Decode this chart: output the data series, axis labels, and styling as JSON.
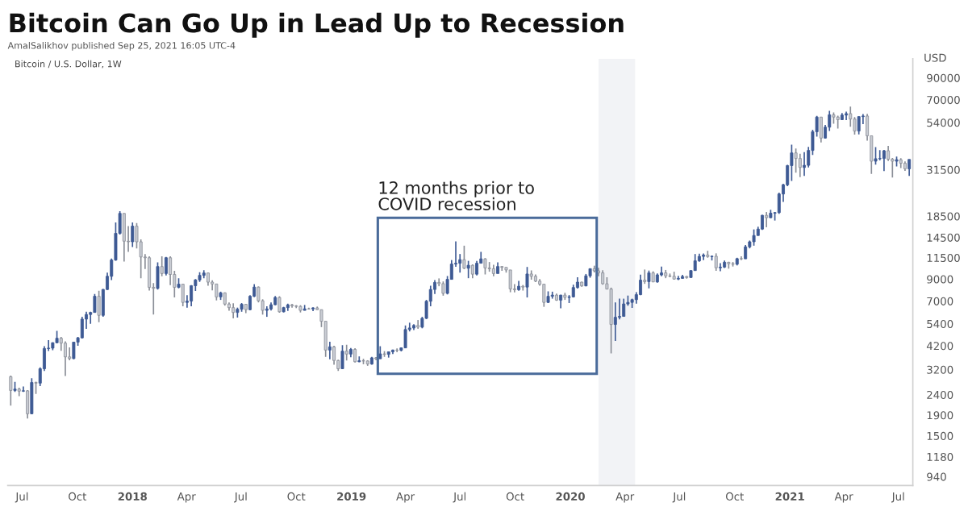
{
  "chart_data": {
    "type": "candlestick",
    "title": "Bitcoin Can Go Up in Lead Up to Recession",
    "subtitle": "AmalSalikhov published Sep 25, 2021 16:05 UTC-4",
    "annotations": [
      "Bitcoin / U.S. Dollar, 1W",
      "12 months prior to\nCOVID recession"
    ],
    "ylabel": "USD",
    "colors": [
      "#c9ccd3",
      "#3e5a94",
      "#c9ccd3",
      "#3e5a94",
      "#c9ccd3",
      "#3e5a94",
      "#c9ccd3",
      "#3e5a94",
      "#3e5a94",
      "#3e5a94",
      "#3e5a94",
      "#3e5a94",
      "#c9ccd3",
      "#c9ccd3",
      "#c9ccd3",
      "#3e5a94",
      "#3e5a94",
      "#3e5a94",
      "#3e5a94",
      "#3e5a94",
      "#3e5a94",
      "#c9ccd3",
      "#3e5a94",
      "#3e5a94",
      "#3e5a94",
      "#3e5a94",
      "#3e5a94",
      "#c9ccd3",
      "#c9ccd3",
      "#3e5a94",
      "#c9ccd3",
      "#c9ccd3",
      "#c9ccd3",
      "#c9ccd3",
      "#c9ccd3",
      "#3e5a94",
      "#c9ccd3",
      "#3e5a94",
      "#c9ccd3",
      "#c9ccd3",
      "#3e5a94",
      "#c9ccd3",
      "#3e5a94",
      "#3e5a94",
      "#3e5a94",
      "#3e5a94",
      "#3e5a94",
      "#c9ccd3",
      "#c9ccd3",
      "#c9ccd3",
      "#3e5a94",
      "#c9ccd3",
      "#c9ccd3",
      "#c9ccd3",
      "#3e5a94",
      "#3e5a94",
      "#c9ccd3",
      "#3e5a94",
      "#3e5a94",
      "#c9ccd3",
      "#c9ccd3",
      "#3e5a94",
      "#3e5a94",
      "#3e5a94",
      "#c9ccd3",
      "#3e5a94",
      "#3e5a94",
      "#c9ccd3",
      "#c9ccd3",
      "#c9ccd3",
      "#3e5a94",
      "#c9ccd3",
      "#3e5a94",
      "#c9ccd3",
      "#c9ccd3",
      "#c9ccd3",
      "#3e5a94",
      "#c9ccd3",
      "#c9ccd3",
      "#3e5a94",
      "#c9ccd3",
      "#3e5a94",
      "#c9ccd3",
      "#3e5a94",
      "#c9ccd3",
      "#c9ccd3",
      "#3e5a94",
      "#c9ccd3",
      "#3e5a94",
      "#c9ccd3",
      "#3e5a94",
      "#3e5a94",
      "#c9ccd3",
      "#3e5a94",
      "#3e5a94",
      "#3e5a94",
      "#3e5a94",
      "#c9ccd3",
      "#3e5a94",
      "#3e5a94",
      "#3e5a94",
      "#3e5a94",
      "#c9ccd3",
      "#c9ccd3",
      "#3e5a94",
      "#3e5a94",
      "#3e5a94",
      "#3e5a94",
      "#c9ccd3",
      "#3e5a94",
      "#c9ccd3",
      "#3e5a94",
      "#3e5a94",
      "#c9ccd3",
      "#c9ccd3",
      "#c9ccd3",
      "#3e5a94",
      "#c9ccd3",
      "#c9ccd3",
      "#c9ccd3",
      "#c9ccd3",
      "#3e5a94",
      "#c9ccd3",
      "#3e5a94",
      "#c9ccd3",
      "#c9ccd3",
      "#c9ccd3",
      "#c9ccd3",
      "#3e5a94",
      "#3e5a94",
      "#c9ccd3",
      "#3e5a94",
      "#c9ccd3",
      "#3e5a94",
      "#3e5a94",
      "#3e5a94",
      "#c9ccd3",
      "#3e5a94",
      "#3e5a94",
      "#c9ccd3",
      "#c9ccd3",
      "#c9ccd3",
      "#c9ccd3",
      "#c9ccd3",
      "#3e5a94",
      "#3e5a94",
      "#3e5a94",
      "#3e5a94",
      "#3e5a94",
      "#3e5a94",
      "#3e5a94",
      "#c9ccd3",
      "#3e5a94",
      "#c9ccd3",
      "#3e5a94",
      "#3e5a94",
      "#c9ccd3",
      "#c9ccd3",
      "#c9ccd3",
      "#3e5a94",
      "#3e5a94",
      "#c9ccd3",
      "#3e5a94",
      "#3e5a94",
      "#3e5a94",
      "#3e5a94",
      "#c9ccd3",
      "#3e5a94",
      "#c9ccd3",
      "#3e5a94",
      "#3e5a94",
      "#c9ccd3",
      "#c9ccd3",
      "#3e5a94",
      "#c9ccd3",
      "#3e5a94",
      "#3e5a94",
      "#3e5a94",
      "#3e5a94",
      "#3e5a94",
      "#c9ccd3",
      "#3e5a94",
      "#3e5a94",
      "#3e5a94",
      "#3e5a94",
      "#3e5a94",
      "#3e5a94",
      "#c9ccd3",
      "#c9ccd3",
      "#3e5a94",
      "#3e5a94",
      "#3e5a94",
      "#3e5a94",
      "#c9ccd3",
      "#3e5a94",
      "#3e5a94",
      "#c9ccd3",
      "#c9ccd3",
      "#3e5a94",
      "#3e5a94",
      "#c9ccd3",
      "#c9ccd3",
      "#3e5a94",
      "#3e5a94",
      "#c9ccd3",
      "#c9ccd3",
      "#3e5a94",
      "#3e5a94",
      "#3e5a94",
      "#c9ccd3",
      "#c9ccd3",
      "#3e5a94",
      "#c9ccd3",
      "#c9ccd3",
      "#3e5a94"
    ],
    "log": true,
    "ylim": [
      850,
      112000
    ],
    "yticks": [
      940,
      1180,
      1500,
      1900,
      2400,
      3200,
      4200,
      5400,
      7000,
      9000,
      11500,
      14500,
      18500,
      31500,
      54000,
      70000,
      90000
    ],
    "xlim": [
      "2017-06-07",
      "2021-07-25"
    ],
    "xticks": [
      {
        "value": "2017-07-01",
        "label": "Jul"
      },
      {
        "value": "2017-10-01",
        "label": "Oct"
      },
      {
        "value": "2018-01-01",
        "label": "2018"
      },
      {
        "value": "2018-04-01",
        "label": "Apr"
      },
      {
        "value": "2018-07-01",
        "label": "Jul"
      },
      {
        "value": "2018-10-01",
        "label": "Oct"
      },
      {
        "value": "2019-01-01",
        "label": "2019"
      },
      {
        "value": "2019-04-01",
        "label": "Apr"
      },
      {
        "value": "2019-07-01",
        "label": "Jul"
      },
      {
        "value": "2019-10-01",
        "label": "Oct"
      },
      {
        "value": "2020-01-01",
        "label": "2020"
      },
      {
        "value": "2020-04-01",
        "label": "Apr"
      },
      {
        "value": "2020-07-01",
        "label": "Jul"
      },
      {
        "value": "2020-10-01",
        "label": "Oct"
      },
      {
        "value": "2021-01-01",
        "label": "2021"
      },
      {
        "value": "2021-04-01",
        "label": "Apr"
      },
      {
        "value": "2021-07-01",
        "label": "Jul"
      }
    ],
    "grid": false,
    "bands": [
      {
        "axis": "x",
        "from": "2020-02-17",
        "to": "2020-04-18",
        "color": "#f2f3f6"
      }
    ],
    "x": [
      "2017-06-12",
      "2017-06-19",
      "2017-06-26",
      "2017-07-03",
      "2017-07-10",
      "2017-07-17",
      "2017-07-24",
      "2017-07-31",
      "2017-08-07",
      "2017-08-14",
      "2017-08-21",
      "2017-08-28",
      "2017-09-04",
      "2017-09-11",
      "2017-09-18",
      "2017-09-25",
      "2017-10-02",
      "2017-10-09",
      "2017-10-16",
      "2017-10-23",
      "2017-10-30",
      "2017-11-06",
      "2017-11-13",
      "2017-11-20",
      "2017-11-27",
      "2017-12-04",
      "2017-12-11",
      "2017-12-18",
      "2017-12-25",
      "2018-01-01",
      "2018-01-08",
      "2018-01-15",
      "2018-01-22",
      "2018-01-29",
      "2018-02-05",
      "2018-02-12",
      "2018-02-19",
      "2018-02-26",
      "2018-03-05",
      "2018-03-12",
      "2018-03-19",
      "2018-03-26",
      "2018-04-02",
      "2018-04-09",
      "2018-04-16",
      "2018-04-23",
      "2018-04-30",
      "2018-05-07",
      "2018-05-14",
      "2018-05-21",
      "2018-05-28",
      "2018-06-04",
      "2018-06-11",
      "2018-06-18",
      "2018-06-25",
      "2018-07-02",
      "2018-07-09",
      "2018-07-16",
      "2018-07-23",
      "2018-07-30",
      "2018-08-06",
      "2018-08-13",
      "2018-08-20",
      "2018-08-27",
      "2018-09-03",
      "2018-09-10",
      "2018-09-17",
      "2018-09-24",
      "2018-10-01",
      "2018-10-08",
      "2018-10-15",
      "2018-10-22",
      "2018-10-29",
      "2018-11-05",
      "2018-11-12",
      "2018-11-19",
      "2018-11-26",
      "2018-12-03",
      "2018-12-10",
      "2018-12-17",
      "2018-12-24",
      "2018-12-31",
      "2019-01-07",
      "2019-01-14",
      "2019-01-21",
      "2019-01-28",
      "2019-02-04",
      "2019-02-11",
      "2019-02-18",
      "2019-02-25",
      "2019-03-04",
      "2019-03-11",
      "2019-03-18",
      "2019-03-25",
      "2019-04-01",
      "2019-04-08",
      "2019-04-15",
      "2019-04-22",
      "2019-04-29",
      "2019-05-06",
      "2019-05-13",
      "2019-05-20",
      "2019-05-27",
      "2019-06-03",
      "2019-06-10",
      "2019-06-17",
      "2019-06-24",
      "2019-07-01",
      "2019-07-08",
      "2019-07-15",
      "2019-07-22",
      "2019-07-29",
      "2019-08-05",
      "2019-08-12",
      "2019-08-19",
      "2019-08-26",
      "2019-09-02",
      "2019-09-09",
      "2019-09-16",
      "2019-09-23",
      "2019-09-30",
      "2019-10-07",
      "2019-10-14",
      "2019-10-21",
      "2019-10-28",
      "2019-11-04",
      "2019-11-11",
      "2019-11-18",
      "2019-11-25",
      "2019-12-02",
      "2019-12-09",
      "2019-12-16",
      "2019-12-23",
      "2019-12-30",
      "2020-01-06",
      "2020-01-13",
      "2020-01-20",
      "2020-01-27",
      "2020-02-03",
      "2020-02-10",
      "2020-02-17",
      "2020-02-24",
      "2020-03-02",
      "2020-03-09",
      "2020-03-16",
      "2020-03-23",
      "2020-03-30",
      "2020-04-06",
      "2020-04-13",
      "2020-04-20",
      "2020-04-27",
      "2020-05-04",
      "2020-05-11",
      "2020-05-18",
      "2020-05-25",
      "2020-06-01",
      "2020-06-08",
      "2020-06-15",
      "2020-06-22",
      "2020-06-29",
      "2020-07-06",
      "2020-07-13",
      "2020-07-20",
      "2020-07-27",
      "2020-08-03",
      "2020-08-10",
      "2020-08-17",
      "2020-08-24",
      "2020-08-31",
      "2020-09-07",
      "2020-09-14",
      "2020-09-21",
      "2020-09-28",
      "2020-10-05",
      "2020-10-12",
      "2020-10-19",
      "2020-10-26",
      "2020-11-02",
      "2020-11-09",
      "2020-11-16",
      "2020-11-23",
      "2020-11-30",
      "2020-12-07",
      "2020-12-14",
      "2020-12-21",
      "2020-12-28",
      "2021-01-04",
      "2021-01-11",
      "2021-01-18",
      "2021-01-25",
      "2021-02-01",
      "2021-02-08",
      "2021-02-15",
      "2021-02-22",
      "2021-03-01",
      "2021-03-08",
      "2021-03-15",
      "2021-03-22",
      "2021-03-29",
      "2021-04-05",
      "2021-04-12",
      "2021-04-19",
      "2021-04-26",
      "2021-05-03",
      "2021-05-10",
      "2021-05-17",
      "2021-05-24",
      "2021-05-31",
      "2021-06-07",
      "2021-06-14",
      "2021-06-21",
      "2021-06-28",
      "2021-07-05",
      "2021-07-12",
      "2021-07-19"
    ],
    "ohlc": [
      [
        2950,
        2990,
        2120,
        2520
      ],
      [
        2520,
        2780,
        2480,
        2560
      ],
      [
        2560,
        2600,
        2360,
        2500
      ],
      [
        2500,
        2640,
        2480,
        2510
      ],
      [
        2510,
        2530,
        1830,
        1930
      ],
      [
        1930,
        2900,
        1920,
        2760
      ],
      [
        2760,
        2790,
        2420,
        2740
      ],
      [
        2740,
        3280,
        2650,
        3230
      ],
      [
        3230,
        4180,
        3150,
        4070
      ],
      [
        4070,
        4480,
        3960,
        4090
      ],
      [
        4090,
        4370,
        3990,
        4350
      ],
      [
        4350,
        4980,
        4330,
        4580
      ],
      [
        4580,
        4650,
        3970,
        4330
      ],
      [
        4330,
        4420,
        2970,
        3700
      ],
      [
        3700,
        4120,
        3560,
        3630
      ],
      [
        3630,
        4380,
        3600,
        4380
      ],
      [
        4380,
        4650,
        4200,
        4600
      ],
      [
        4600,
        5850,
        4560,
        5700
      ],
      [
        5700,
        6200,
        5100,
        6010
      ],
      [
        6010,
        6200,
        5400,
        6150
      ],
      [
        6150,
        7600,
        6150,
        7400
      ],
      [
        7400,
        7890,
        5500,
        5950
      ],
      [
        5950,
        8050,
        5860,
        8000
      ],
      [
        8000,
        9700,
        7950,
        9300
      ],
      [
        9300,
        11400,
        8900,
        11200
      ],
      [
        11200,
        17200,
        11100,
        15200
      ],
      [
        15200,
        19600,
        15000,
        19100
      ],
      [
        19100,
        19100,
        11000,
        13900
      ],
      [
        13900,
        16500,
        12300,
        13800
      ],
      [
        13800,
        17200,
        13000,
        16500
      ],
      [
        16500,
        17100,
        12800,
        13800
      ],
      [
        13800,
        14200,
        9100,
        11600
      ],
      [
        11600,
        12000,
        10100,
        11500
      ],
      [
        11500,
        11700,
        7900,
        8200
      ],
      [
        8200,
        8600,
        6000,
        8100
      ],
      [
        8100,
        10900,
        8000,
        10400
      ],
      [
        10400,
        11700,
        9300,
        9600
      ],
      [
        9600,
        11600,
        9400,
        11500
      ],
      [
        11500,
        11700,
        8400,
        9500
      ],
      [
        9500,
        9900,
        7300,
        8200
      ],
      [
        8200,
        9100,
        8100,
        8500
      ],
      [
        8500,
        8500,
        6600,
        6900
      ],
      [
        6900,
        7500,
        6500,
        7000
      ],
      [
        7000,
        8400,
        6600,
        8350
      ],
      [
        8350,
        9000,
        7860,
        8920
      ],
      [
        8920,
        9750,
        8720,
        9400
      ],
      [
        9400,
        9960,
        9100,
        9660
      ],
      [
        9660,
        9700,
        8350,
        8700
      ],
      [
        8700,
        8880,
        7920,
        8520
      ],
      [
        8520,
        8530,
        7060,
        7350
      ],
      [
        7350,
        7800,
        7100,
        7700
      ],
      [
        7700,
        7730,
        6650,
        6770
      ],
      [
        6770,
        6900,
        6280,
        6500
      ],
      [
        6500,
        6830,
        5750,
        6150
      ],
      [
        6150,
        6500,
        5800,
        6380
      ],
      [
        6380,
        6850,
        6200,
        6750
      ],
      [
        6750,
        6780,
        6100,
        6350
      ],
      [
        6350,
        7500,
        6300,
        7400
      ],
      [
        7400,
        8500,
        7330,
        8220
      ],
      [
        8220,
        8280,
        6900,
        7030
      ],
      [
        7030,
        7150,
        6000,
        6300
      ],
      [
        6300,
        6600,
        5850,
        6400
      ],
      [
        6400,
        6900,
        6290,
        6720
      ],
      [
        6720,
        7420,
        6680,
        7300
      ],
      [
        7300,
        7400,
        6130,
        6200
      ],
      [
        6200,
        6560,
        6150,
        6500
      ],
      [
        6500,
        6800,
        6260,
        6710
      ],
      [
        6710,
        6780,
        6490,
        6630
      ],
      [
        6630,
        6690,
        6460,
        6590
      ],
      [
        6590,
        6680,
        6150,
        6300
      ],
      [
        6300,
        6700,
        6290,
        6410
      ],
      [
        6410,
        6490,
        6360,
        6400
      ],
      [
        6400,
        6520,
        6250,
        6480
      ],
      [
        6480,
        6580,
        6330,
        6350
      ],
      [
        6350,
        6360,
        5200,
        5560
      ],
      [
        5560,
        5560,
        3700,
        4000
      ],
      [
        4000,
        4400,
        3600,
        4150
      ],
      [
        4150,
        4200,
        3380,
        3550
      ],
      [
        3550,
        3580,
        3150,
        3230
      ],
      [
        3230,
        4230,
        3220,
        3950
      ],
      [
        3950,
        4250,
        3550,
        3820
      ],
      [
        3820,
        4100,
        3680,
        4030
      ],
      [
        4030,
        4090,
        3470,
        3500
      ],
      [
        3500,
        3720,
        3480,
        3540
      ],
      [
        3540,
        3620,
        3400,
        3530
      ],
      [
        3530,
        3560,
        3340,
        3410
      ],
      [
        3410,
        3700,
        3380,
        3660
      ],
      [
        3660,
        3690,
        3570,
        3620
      ],
      [
        3620,
        4180,
        3620,
        3830
      ],
      [
        3830,
        3950,
        3700,
        3810
      ],
      [
        3810,
        3930,
        3670,
        3920
      ],
      [
        3920,
        4020,
        3820,
        4000
      ],
      [
        4000,
        4080,
        3900,
        3990
      ],
      [
        3990,
        4120,
        3940,
        4100
      ],
      [
        4100,
        5300,
        4090,
        5060
      ],
      [
        5060,
        5470,
        4950,
        5150
      ],
      [
        5150,
        5380,
        5030,
        5300
      ],
      [
        5300,
        5640,
        5100,
        5200
      ],
      [
        5200,
        5850,
        5130,
        5750
      ],
      [
        5750,
        7100,
        5700,
        6990
      ],
      [
        6990,
        8350,
        6600,
        8000
      ],
      [
        8000,
        8900,
        7600,
        8670
      ],
      [
        8670,
        9080,
        8300,
        8550
      ],
      [
        8550,
        8770,
        7450,
        7650
      ],
      [
        7650,
        9330,
        7560,
        8980
      ],
      [
        8980,
        11200,
        8950,
        10700
      ],
      [
        10700,
        13880,
        10370,
        10800
      ],
      [
        10800,
        12000,
        9700,
        11250
      ],
      [
        11250,
        13200,
        10100,
        10200
      ],
      [
        10200,
        11100,
        9100,
        10550
      ],
      [
        10550,
        10650,
        9100,
        9530
      ],
      [
        9530,
        11080,
        9400,
        10800
      ],
      [
        10800,
        12300,
        10800,
        11350
      ],
      [
        11350,
        11450,
        9500,
        10230
      ],
      [
        10230,
        10950,
        9800,
        10140
      ],
      [
        10140,
        10600,
        9300,
        9600
      ],
      [
        9600,
        10900,
        9600,
        10400
      ],
      [
        10400,
        10450,
        9900,
        10300
      ],
      [
        10300,
        10300,
        9700,
        10000
      ],
      [
        10000,
        10000,
        7750,
        8050
      ],
      [
        8050,
        8500,
        7730,
        7980
      ],
      [
        7980,
        8830,
        7880,
        8300
      ],
      [
        8300,
        8420,
        7900,
        8220
      ],
      [
        8220,
        10350,
        7300,
        9550
      ],
      [
        9550,
        9950,
        8950,
        9300
      ],
      [
        9300,
        9500,
        8700,
        8800
      ],
      [
        8800,
        9000,
        8350,
        8500
      ],
      [
        8500,
        8500,
        6560,
        6900
      ],
      [
        6900,
        7830,
        6850,
        7400
      ],
      [
        7400,
        7800,
        7200,
        7500
      ],
      [
        7500,
        7640,
        7020,
        7080
      ],
      [
        7080,
        7530,
        6450,
        7500
      ],
      [
        7500,
        7700,
        7100,
        7300
      ],
      [
        7300,
        7500,
        6850,
        7350
      ],
      [
        7350,
        8450,
        7300,
        8180
      ],
      [
        8180,
        9200,
        8080,
        8700
      ],
      [
        8700,
        8750,
        8250,
        8330
      ],
      [
        8330,
        9550,
        8300,
        9350
      ],
      [
        9350,
        10170,
        9150,
        10150
      ],
      [
        10150,
        10500,
        9720,
        9900
      ],
      [
        9900,
        10250,
        9300,
        9670
      ],
      [
        9670,
        9970,
        8450,
        8540
      ],
      [
        8540,
        9200,
        8000,
        8040
      ],
      [
        8040,
        8170,
        3850,
        5360
      ],
      [
        5360,
        6900,
        4440,
        5820
      ],
      [
        5820,
        7200,
        5680,
        5880
      ],
      [
        5880,
        7200,
        5860,
        6780
      ],
      [
        6780,
        7460,
        6640,
        6900
      ],
      [
        6900,
        7200,
        6480,
        7120
      ],
      [
        7120,
        7760,
        6800,
        7540
      ],
      [
        7540,
        9480,
        7500,
        8900
      ],
      [
        8900,
        10050,
        8530,
        8750
      ],
      [
        8750,
        9930,
        8100,
        9670
      ],
      [
        9670,
        9850,
        8700,
        8720
      ],
      [
        8720,
        9600,
        8640,
        9450
      ],
      [
        9450,
        10400,
        9300,
        9670
      ],
      [
        9670,
        10000,
        9100,
        9340
      ],
      [
        9340,
        9600,
        9200,
        9300
      ],
      [
        9300,
        9800,
        8950,
        9010
      ],
      [
        9010,
        9350,
        8900,
        9080
      ],
      [
        9080,
        9450,
        9050,
        9280
      ],
      [
        9280,
        9350,
        9050,
        9170
      ],
      [
        9170,
        9960,
        9150,
        9930
      ],
      [
        9930,
        12000,
        9920,
        11100
      ],
      [
        11100,
        12050,
        10980,
        11680
      ],
      [
        11680,
        12080,
        11200,
        11860
      ],
      [
        11860,
        12450,
        11500,
        11650
      ],
      [
        11650,
        11800,
        11150,
        11700
      ],
      [
        11700,
        12090,
        9900,
        10250
      ],
      [
        10250,
        10800,
        9850,
        10330
      ],
      [
        10330,
        11150,
        10220,
        10920
      ],
      [
        10920,
        10980,
        10150,
        10740
      ],
      [
        10740,
        10950,
        10400,
        10680
      ],
      [
        10680,
        11500,
        10530,
        11380
      ],
      [
        11380,
        11700,
        11200,
        11360
      ],
      [
        11360,
        13300,
        11350,
        13030
      ],
      [
        13030,
        14000,
        12800,
        13800
      ],
      [
        13800,
        15900,
        13200,
        14830
      ],
      [
        14830,
        16400,
        14800,
        15960
      ],
      [
        15960,
        18800,
        15800,
        18680
      ],
      [
        18680,
        19400,
        16300,
        18180
      ],
      [
        18180,
        19900,
        18100,
        19150
      ],
      [
        19150,
        19400,
        17600,
        19270
      ],
      [
        19270,
        24200,
        19000,
        23850
      ],
      [
        23850,
        26800,
        21800,
        26490
      ],
      [
        26490,
        33300,
        26100,
        33000
      ],
      [
        33000,
        41900,
        27700,
        38150
      ],
      [
        38150,
        40100,
        30400,
        35800
      ],
      [
        35800,
        37800,
        28900,
        32300
      ],
      [
        32300,
        38500,
        29300,
        33100
      ],
      [
        33100,
        40900,
        32300,
        39250
      ],
      [
        39250,
        49700,
        37300,
        48600
      ],
      [
        48600,
        58300,
        46000,
        57500
      ],
      [
        57500,
        57500,
        43000,
        45200
      ],
      [
        45200,
        52600,
        44900,
        51200
      ],
      [
        51200,
        61700,
        49000,
        59000
      ],
      [
        59000,
        60600,
        53300,
        57500
      ],
      [
        57500,
        58400,
        50400,
        55800
      ],
      [
        55800,
        60200,
        55500,
        58800
      ],
      [
        58800,
        61200,
        55500,
        59800
      ],
      [
        59800,
        64800,
        51500,
        56200
      ],
      [
        56200,
        57500,
        47000,
        49000
      ],
      [
        49000,
        58000,
        47200,
        57800
      ],
      [
        57800,
        59500,
        53000,
        58200
      ],
      [
        58200,
        59600,
        43900,
        46400
      ],
      [
        46400,
        46400,
        30000,
        34700
      ],
      [
        34700,
        40800,
        33400,
        35700
      ],
      [
        35700,
        39400,
        35000,
        35800
      ],
      [
        35800,
        39500,
        31000,
        39100
      ],
      [
        39100,
        41300,
        34800,
        35500
      ],
      [
        35500,
        36000,
        28800,
        34700
      ],
      [
        34700,
        36600,
        32700,
        35300
      ],
      [
        35300,
        35900,
        32100,
        33900
      ],
      [
        33900,
        34600,
        31100,
        31800
      ],
      [
        31800,
        35400,
        29300,
        35400
      ]
    ]
  }
}
